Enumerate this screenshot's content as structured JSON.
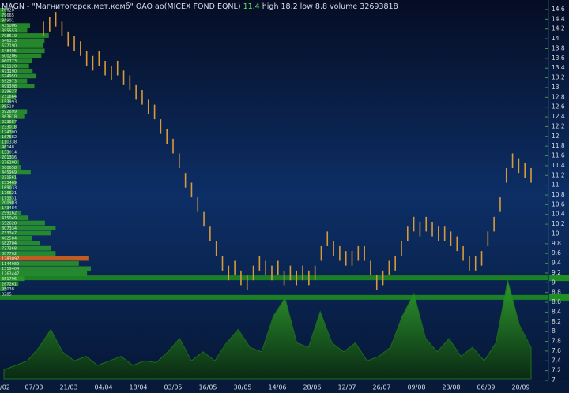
{
  "chart_data": {
    "type": "bar-range",
    "title": {
      "name": "MAGN - \"Магнитогорск.мет.комб\" OAO ао(MICEX FOND EQNL)",
      "last": "11.4",
      "high": "high 18.2",
      "low": "low 8.8",
      "volume": "volume 32693818"
    },
    "x_labels": [
      "/02",
      "07/03",
      "21/03",
      "04/04",
      "18/04",
      "03/05",
      "16/05",
      "30/05",
      "14/06",
      "28/06",
      "12/07",
      "26/07",
      "09/08",
      "23/08",
      "06/09",
      "20/09"
    ],
    "ylim": [
      7,
      14.6
    ],
    "yticks": [
      7,
      7.2,
      7.4,
      7.6,
      7.8,
      8,
      8.2,
      8.4,
      8.6,
      8.8,
      9,
      9.2,
      9.4,
      9.6,
      9.8,
      10,
      10.2,
      10.4,
      10.6,
      10.8,
      11,
      11.2,
      11.4,
      11.6,
      11.8,
      12,
      12.2,
      12.4,
      12.6,
      12.8,
      13,
      13.2,
      13.4,
      13.6,
      13.8,
      14,
      14.2,
      14.4,
      14.6
    ],
    "color": "#d89a3a",
    "high": [
      14.35,
      14.45,
      14.55,
      14.35,
      14.15,
      14.05,
      13.95,
      13.75,
      13.65,
      13.75,
      13.55,
      13.45,
      13.55,
      13.35,
      13.25,
      13.05,
      12.95,
      12.75,
      12.65,
      12.35,
      12.15,
      11.95,
      11.65,
      11.25,
      11.05,
      10.75,
      10.45,
      10.15,
      9.85,
      9.55,
      9.35,
      9.45,
      9.25,
      9.15,
      9.35,
      9.55,
      9.45,
      9.35,
      9.45,
      9.25,
      9.35,
      9.25,
      9.35,
      9.25,
      9.35,
      9.75,
      10.05,
      9.85,
      9.75,
      9.65,
      9.65,
      9.75,
      9.75,
      9.45,
      9.15,
      9.25,
      9.45,
      9.55,
      9.85,
      10.15,
      10.35,
      10.25,
      10.35,
      10.25,
      10.15,
      10.15,
      10.05,
      9.95,
      9.75,
      9.55,
      9.55,
      9.65,
      10.05,
      10.35,
      10.75,
      11.35,
      11.65,
      11.55,
      11.45,
      11.35
    ],
    "low": [
      14.05,
      14.15,
      14.25,
      14.05,
      13.85,
      13.75,
      13.65,
      13.45,
      13.35,
      13.45,
      13.25,
      13.15,
      13.25,
      13.05,
      12.95,
      12.75,
      12.65,
      12.45,
      12.35,
      12.05,
      11.85,
      11.65,
      11.35,
      10.95,
      10.75,
      10.45,
      10.15,
      9.85,
      9.55,
      9.25,
      9.05,
      9.15,
      8.95,
      8.85,
      9.05,
      9.25,
      9.15,
      9.05,
      9.15,
      8.95,
      9.05,
      8.95,
      9.05,
      8.95,
      9.05,
      9.45,
      9.75,
      9.55,
      9.45,
      9.35,
      9.35,
      9.45,
      9.45,
      9.15,
      8.85,
      8.95,
      9.15,
      9.25,
      9.55,
      9.85,
      10.05,
      9.95,
      10.05,
      9.95,
      9.85,
      9.85,
      9.75,
      9.65,
      9.45,
      9.25,
      9.25,
      9.35,
      9.75,
      10.05,
      10.45,
      11.05,
      11.35,
      11.25,
      11.15,
      11.05
    ],
    "levels": [
      9.1,
      8.7
    ],
    "level_color": "#1f8f1f",
    "volume": {
      "color": "#1e6b1e",
      "values": [
        10,
        15,
        20,
        35,
        55,
        30,
        20,
        25,
        15,
        20,
        25,
        15,
        20,
        18,
        30,
        45,
        20,
        30,
        20,
        40,
        55,
        35,
        30,
        70,
        90,
        40,
        35,
        75,
        40,
        30,
        40,
        20,
        25,
        35,
        70,
        95,
        45,
        30,
        45,
        25,
        35,
        20,
        40,
        110,
        60,
        35
      ]
    },
    "profile": {
      "color": "#2a9a2a",
      "highlight_row": 49,
      "highlight_color": "#e0661a",
      "labels": [
        "76620",
        "79665",
        "94901",
        "435006",
        "395553",
        "708519",
        "646313",
        "627190",
        "648495",
        "600206",
        "460773",
        "421120",
        "473190",
        "524950",
        "392973",
        "499398",
        "239627",
        "231664",
        "153993",
        "98518",
        "392699",
        "363618",
        "223687",
        "233018",
        "174300",
        "167682",
        "110338",
        "96148",
        "133014",
        "201336",
        "276200",
        "300658",
        "445969",
        "231561",
        "233469",
        "169033",
        "176521",
        "173331",
        "200903",
        "143484",
        "299162",
        "415049",
        "652628",
        "807334",
        "733347",
        "462584",
        "582704",
        "737368",
        "807702",
        "1283097",
        "1144989",
        "1319404",
        "1263447",
        "361796",
        "267261",
        "95038",
        "3285"
      ],
      "values": [
        76620,
        79665,
        94901,
        435006,
        395553,
        708519,
        646313,
        627190,
        648495,
        600206,
        460773,
        421120,
        473190,
        524950,
        392973,
        499398,
        239627,
        231664,
        153993,
        98518,
        392699,
        363618,
        223687,
        233018,
        174300,
        167682,
        110338,
        96148,
        133014,
        201336,
        276200,
        300658,
        445969,
        231561,
        233469,
        169033,
        176521,
        173331,
        200903,
        143484,
        299162,
        415049,
        652628,
        807334,
        733347,
        462584,
        582704,
        737368,
        807702,
        1283097,
        1144989,
        1319404,
        1263447,
        361796,
        267261,
        95038,
        3285
      ]
    }
  }
}
